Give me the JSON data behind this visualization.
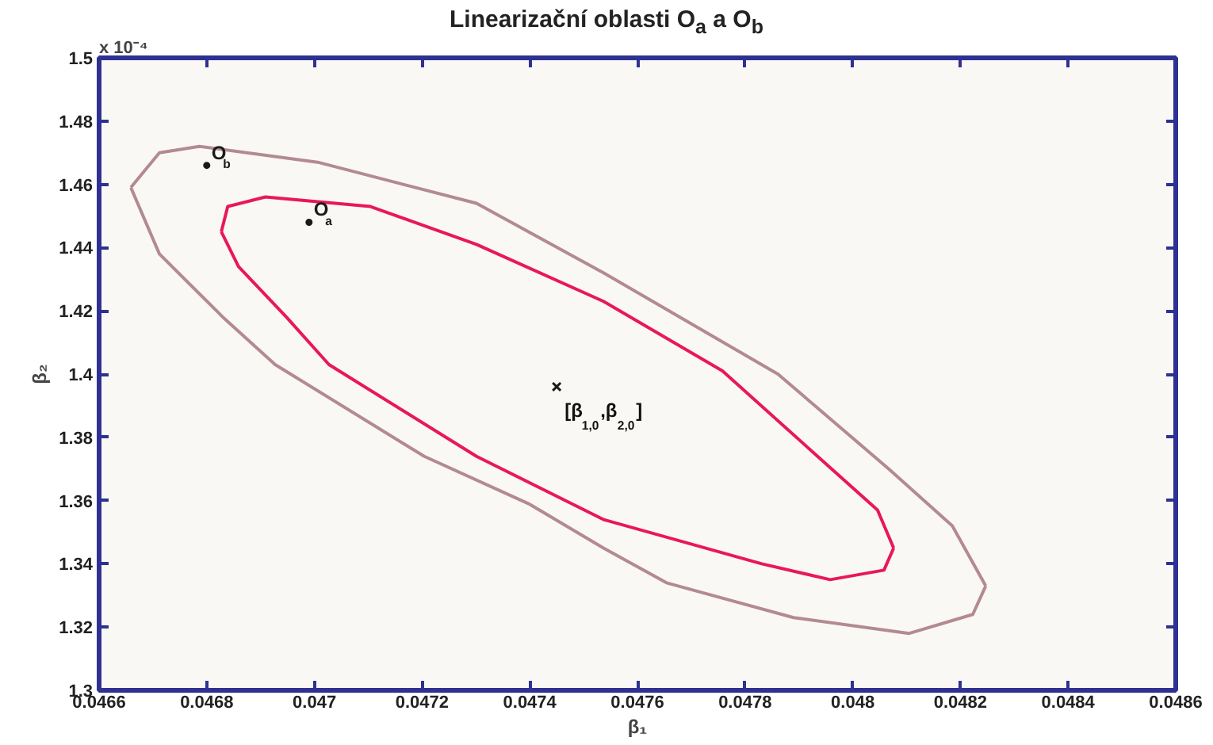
{
  "chart_data": {
    "type": "line",
    "title": "Linearizační oblasti O$_{a}$ a O$_{b}$",
    "xlabel": "β₁",
    "ylabel": "β₂",
    "xlim": [
      0.0466,
      0.0486
    ],
    "ylim": [
      1.3,
      1.5
    ],
    "xticks": [
      0.0466,
      0.0468,
      0.047,
      0.0472,
      0.0474,
      0.0476,
      0.0478,
      0.048,
      0.0482,
      0.0484,
      0.0486
    ],
    "yticks": [
      1.3,
      1.32,
      1.34,
      1.36,
      1.38,
      1.4,
      1.42,
      1.44,
      1.46,
      1.48,
      1.5
    ],
    "series": [
      {
        "color": "#b38a92",
        "x": [
          0.046659,
          0.046712,
          0.046786,
          0.047006,
          0.047301,
          0.047537,
          0.047861,
          0.048067,
          0.048185,
          0.048247
        ],
        "values": [
          1.459,
          1.47,
          1.472,
          1.467,
          1.454,
          1.432,
          1.4,
          1.37,
          1.352,
          1.333
        ]
      },
      {
        "color": "#b38a92",
        "x": [
          0.046659,
          0.046712,
          0.04683,
          0.046927,
          0.047204,
          0.047398,
          0.047537,
          0.047654,
          0.04789,
          0.048105,
          0.048223,
          0.048247
        ],
        "values": [
          1.459,
          1.438,
          1.418,
          1.403,
          1.374,
          1.359,
          1.345,
          1.334,
          1.323,
          1.318,
          1.324,
          1.333
        ]
      },
      {
        "color": "#e8185a",
        "x": [
          0.046827,
          0.046839,
          0.046909,
          0.047104,
          0.047301,
          0.047537,
          0.047758,
          0.047928,
          0.048046,
          0.048076
        ],
        "values": [
          1.445,
          1.453,
          1.456,
          1.453,
          1.441,
          1.423,
          1.401,
          1.375,
          1.357,
          1.345
        ]
      },
      {
        "color": "#e8185a",
        "x": [
          0.046827,
          0.046859,
          0.046948,
          0.047027,
          0.047301,
          0.047537,
          0.047831,
          0.047958,
          0.048058,
          0.048076
        ],
        "values": [
          1.445,
          1.434,
          1.418,
          1.403,
          1.374,
          1.354,
          1.34,
          1.335,
          1.338,
          1.345
        ]
      },
      {
        "type": "scatter",
        "marker": "cross",
        "color": "#1a1a1a",
        "x": [
          0.04745
        ],
        "values": [
          1.396
        ]
      },
      {
        "type": "scatter",
        "marker": "circle",
        "color": "#1a1a1a",
        "x": [
          0.04699,
          0.0468
        ],
        "values": [
          1.448,
          1.466
        ]
      }
    ],
    "annotations": [
      "x 10⁻⁴",
      {
        "text": "O$_{a}$",
        "x": 0.04699,
        "y": 1.448
      },
      {
        "text": "O$_{b}$",
        "x": 0.0468,
        "y": 1.466
      },
      {
        "text": "[β$_{1,0}$,β$_{2,0}$]",
        "x": 0.04745,
        "y": 1.396
      }
    ]
  }
}
